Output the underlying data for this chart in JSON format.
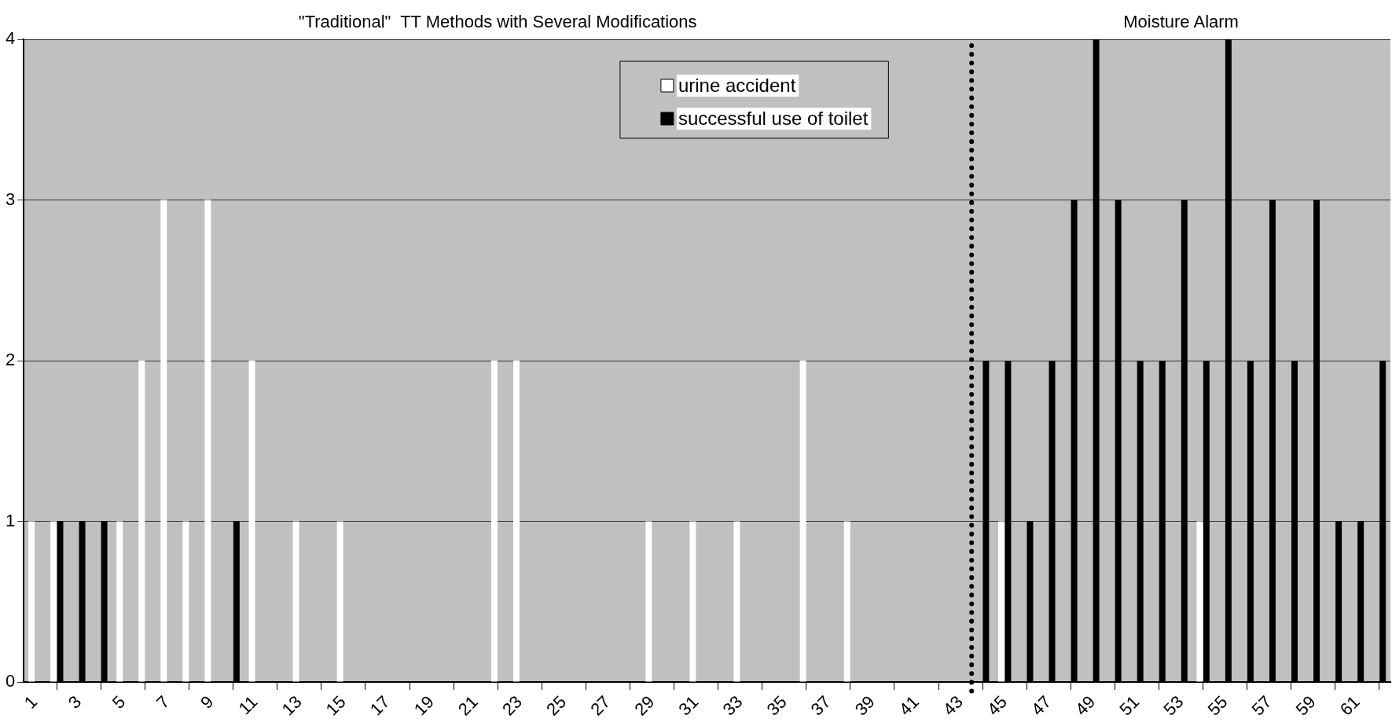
{
  "chart_data": {
    "type": "bar",
    "annotations": [
      "\"Traditional\"  TT Methods with Several Modifications",
      "Moisture Alarm"
    ],
    "x": [
      1,
      2,
      3,
      4,
      5,
      6,
      7,
      8,
      9,
      10,
      11,
      12,
      13,
      14,
      15,
      16,
      17,
      18,
      19,
      20,
      21,
      22,
      23,
      24,
      25,
      26,
      27,
      28,
      29,
      30,
      31,
      32,
      33,
      34,
      35,
      36,
      37,
      38,
      39,
      40,
      41,
      42,
      43,
      44,
      45,
      46,
      47,
      48,
      49,
      50,
      51,
      52,
      53,
      54,
      55,
      56,
      57,
      58,
      59,
      60,
      61,
      62
    ],
    "series": [
      {
        "name": "urine accident",
        "color": "#ffffff",
        "values": [
          1,
          1,
          0,
          0,
          1,
          2,
          3,
          1,
          3,
          0,
          2,
          0,
          1,
          0,
          1,
          0,
          0,
          0,
          0,
          0,
          0,
          2,
          2,
          0,
          0,
          0,
          0,
          0,
          1,
          0,
          1,
          0,
          1,
          0,
          0,
          2,
          0,
          1,
          0,
          0,
          0,
          0,
          0,
          0,
          1,
          0,
          0,
          0,
          0,
          0,
          0,
          0,
          0,
          1,
          0,
          0,
          0,
          0,
          0,
          0,
          0,
          0
        ]
      },
      {
        "name": "successful use of toilet",
        "color": "#000000",
        "values": [
          0,
          1,
          1,
          1,
          0,
          0,
          0,
          0,
          0,
          1,
          0,
          0,
          0,
          0,
          0,
          0,
          0,
          0,
          0,
          0,
          0,
          0,
          0,
          0,
          0,
          0,
          0,
          0,
          0,
          0,
          0,
          0,
          0,
          0,
          0,
          0,
          0,
          0,
          0,
          0,
          0,
          0,
          0,
          2,
          2,
          1,
          2,
          3,
          4,
          3,
          2,
          2,
          3,
          2,
          4,
          2,
          3,
          2,
          3,
          1,
          1,
          2
        ]
      }
    ],
    "xlim": [
      0.5,
      62.5
    ],
    "xticks": [
      1,
      3,
      5,
      7,
      9,
      11,
      13,
      15,
      17,
      19,
      21,
      23,
      25,
      27,
      29,
      31,
      33,
      35,
      37,
      39,
      41,
      43,
      45,
      47,
      49,
      51,
      53,
      55,
      57,
      59,
      61
    ],
    "ylim": [
      0,
      4
    ],
    "yticks": [
      0,
      1,
      2,
      3,
      4
    ],
    "grid": "y",
    "legend": "top",
    "ref_lines": [
      {
        "axis": "x",
        "value": 43.5,
        "color": "#000000",
        "line_style": "dotted"
      }
    ]
  }
}
